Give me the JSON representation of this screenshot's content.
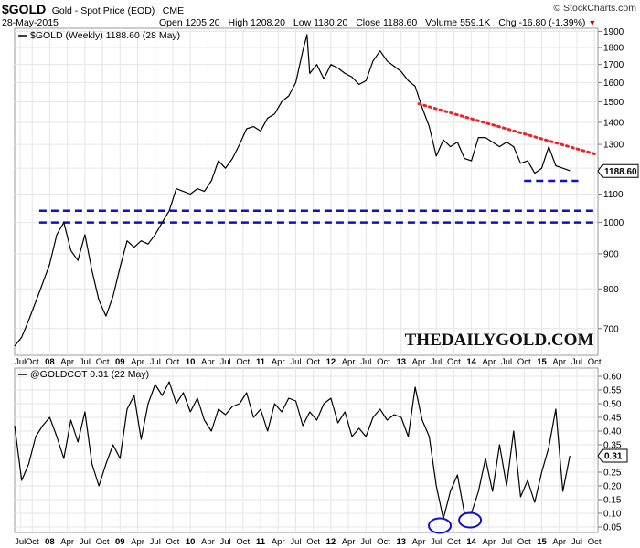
{
  "header": {
    "symbol": "$GOLD",
    "description": "Gold - Spot Price (EOD)",
    "exchange": "CME",
    "date": "28-May-2015",
    "open_label": "Open",
    "open_value": "1205.20",
    "high_label": "High",
    "high_value": "1208.20",
    "low_label": "Low",
    "low_value": "1180.20",
    "close_label": "Close",
    "close_value": "1188.60",
    "volume_label": "Volume",
    "volume_value": "559.1K",
    "chg_label": "Chg",
    "chg_value": "-16.80 (-1.39%)",
    "copyright": "© StockCharts.com",
    "change_color": "#cc0000"
  },
  "watermark": "THEDAILYGOLD.COM",
  "chart_data": [
    {
      "type": "line",
      "name": "price-panel",
      "legend": "$GOLD (Weekly) 1188.60 (28 May)",
      "last_value_label": "1188.60",
      "y_scale": "log",
      "ylim": [
        640,
        1920
      ],
      "yticks": [
        700,
        800,
        900,
        1000,
        1100,
        1200,
        1300,
        1400,
        1500,
        1600,
        1700,
        1800,
        1900
      ],
      "xlim": [
        2007.5,
        2015.8
      ],
      "x_tick_labels": [
        {
          "x": 2007.58,
          "label": "Jul"
        },
        {
          "x": 2007.75,
          "label": "Oct"
        },
        {
          "x": 2008.0,
          "label": "08"
        },
        {
          "x": 2008.25,
          "label": "Apr"
        },
        {
          "x": 2008.5,
          "label": "Jul"
        },
        {
          "x": 2008.75,
          "label": "Oct"
        },
        {
          "x": 2009.0,
          "label": "09"
        },
        {
          "x": 2009.25,
          "label": "Apr"
        },
        {
          "x": 2009.5,
          "label": "Jul"
        },
        {
          "x": 2009.75,
          "label": "Oct"
        },
        {
          "x": 2010.0,
          "label": "10"
        },
        {
          "x": 2010.25,
          "label": "Apr"
        },
        {
          "x": 2010.5,
          "label": "Jul"
        },
        {
          "x": 2010.75,
          "label": "Oct"
        },
        {
          "x": 2011.0,
          "label": "11"
        },
        {
          "x": 2011.25,
          "label": "Apr"
        },
        {
          "x": 2011.5,
          "label": "Jul"
        },
        {
          "x": 2011.75,
          "label": "Oct"
        },
        {
          "x": 2012.0,
          "label": "12"
        },
        {
          "x": 2012.25,
          "label": "Apr"
        },
        {
          "x": 2012.5,
          "label": "Jul"
        },
        {
          "x": 2012.75,
          "label": "Oct"
        },
        {
          "x": 2013.0,
          "label": "13"
        },
        {
          "x": 2013.25,
          "label": "Apr"
        },
        {
          "x": 2013.5,
          "label": "Jul"
        },
        {
          "x": 2013.75,
          "label": "Oct"
        },
        {
          "x": 2014.0,
          "label": "14"
        },
        {
          "x": 2014.25,
          "label": "Apr"
        },
        {
          "x": 2014.5,
          "label": "Jul"
        },
        {
          "x": 2014.75,
          "label": "Oct"
        },
        {
          "x": 2015.0,
          "label": "15"
        },
        {
          "x": 2015.25,
          "label": "Apr"
        },
        {
          "x": 2015.5,
          "label": "Jul"
        },
        {
          "x": 2015.75,
          "label": "Oct"
        }
      ],
      "bold_tick_labels": [
        "08",
        "09",
        "10",
        "11",
        "12",
        "13",
        "14",
        "15"
      ],
      "series": [
        {
          "name": "$GOLD",
          "color": "#000000",
          "x": [
            2007.5,
            2007.6,
            2007.7,
            2007.85,
            2008.0,
            2008.1,
            2008.2,
            2008.3,
            2008.4,
            2008.5,
            2008.6,
            2008.7,
            2008.8,
            2008.9,
            2009.0,
            2009.1,
            2009.2,
            2009.3,
            2009.4,
            2009.5,
            2009.6,
            2009.7,
            2009.8,
            2009.9,
            2010.0,
            2010.1,
            2010.2,
            2010.3,
            2010.4,
            2010.5,
            2010.6,
            2010.7,
            2010.8,
            2010.9,
            2011.0,
            2011.1,
            2011.2,
            2011.3,
            2011.4,
            2011.5,
            2011.6,
            2011.66,
            2011.7,
            2011.8,
            2011.9,
            2012.0,
            2012.1,
            2012.2,
            2012.3,
            2012.4,
            2012.5,
            2012.6,
            2012.7,
            2012.8,
            2012.9,
            2013.0,
            2013.1,
            2013.2,
            2013.3,
            2013.4,
            2013.5,
            2013.6,
            2013.7,
            2013.8,
            2013.9,
            2014.0,
            2014.1,
            2014.2,
            2014.3,
            2014.4,
            2014.5,
            2014.6,
            2014.7,
            2014.8,
            2014.9,
            2015.0,
            2015.1,
            2015.2,
            2015.3,
            2015.4
          ],
          "y": [
            660,
            680,
            720,
            790,
            870,
            960,
            1000,
            910,
            880,
            960,
            850,
            770,
            730,
            780,
            860,
            940,
            920,
            940,
            930,
            960,
            1000,
            1040,
            1120,
            1110,
            1100,
            1120,
            1110,
            1150,
            1230,
            1200,
            1240,
            1300,
            1370,
            1380,
            1360,
            1420,
            1440,
            1500,
            1530,
            1600,
            1780,
            1880,
            1650,
            1700,
            1620,
            1700,
            1680,
            1650,
            1630,
            1590,
            1610,
            1720,
            1780,
            1720,
            1690,
            1660,
            1610,
            1580,
            1470,
            1380,
            1250,
            1320,
            1290,
            1310,
            1240,
            1230,
            1330,
            1330,
            1310,
            1290,
            1310,
            1290,
            1220,
            1230,
            1180,
            1200,
            1290,
            1210,
            1200,
            1190
          ]
        }
      ],
      "annotations": {
        "resistance_line": {
          "color": "#e8262a",
          "x": [
            2013.25,
            2015.8
          ],
          "y": [
            1490,
            1255
          ]
        },
        "support_lines": [
          {
            "color": "#1010c8",
            "x": [
              2007.85,
              2015.8
            ],
            "y": [
              1040,
              1040
            ]
          },
          {
            "color": "#1010c8",
            "x": [
              2007.85,
              2015.8
            ],
            "y": [
              1000,
              1000
            ]
          },
          {
            "color": "#1010c8",
            "x": [
              2014.75,
              2015.52
            ],
            "y": [
              1150,
              1150
            ]
          }
        ]
      }
    },
    {
      "type": "line",
      "name": "cot-panel",
      "legend": "@GOLDCOT 0.31 (22 May)",
      "last_value_label": "0.31",
      "ylim": [
        0.03,
        0.63
      ],
      "yticks": [
        0.05,
        0.1,
        0.15,
        0.2,
        0.25,
        0.3,
        0.35,
        0.4,
        0.45,
        0.5,
        0.55,
        0.6
      ],
      "xlim": [
        2007.5,
        2015.8
      ],
      "series": [
        {
          "name": "@GOLDCOT",
          "color": "#000000",
          "x": [
            2007.5,
            2007.6,
            2007.7,
            2007.8,
            2007.9,
            2008.0,
            2008.1,
            2008.2,
            2008.3,
            2008.4,
            2008.5,
            2008.6,
            2008.7,
            2008.8,
            2008.9,
            2009.0,
            2009.1,
            2009.2,
            2009.3,
            2009.4,
            2009.5,
            2009.6,
            2009.7,
            2009.8,
            2009.9,
            2010.0,
            2010.1,
            2010.2,
            2010.3,
            2010.4,
            2010.5,
            2010.6,
            2010.7,
            2010.8,
            2010.9,
            2011.0,
            2011.1,
            2011.2,
            2011.3,
            2011.4,
            2011.5,
            2011.6,
            2011.7,
            2011.8,
            2011.9,
            2012.0,
            2012.1,
            2012.2,
            2012.3,
            2012.4,
            2012.5,
            2012.6,
            2012.7,
            2012.8,
            2012.9,
            2013.0,
            2013.1,
            2013.2,
            2013.3,
            2013.4,
            2013.5,
            2013.6,
            2013.7,
            2013.8,
            2013.9,
            2014.0,
            2014.1,
            2014.2,
            2014.3,
            2014.4,
            2014.5,
            2014.6,
            2014.7,
            2014.8,
            2014.9,
            2015.0,
            2015.1,
            2015.2,
            2015.3,
            2015.4
          ],
          "y": [
            0.42,
            0.22,
            0.28,
            0.38,
            0.42,
            0.45,
            0.38,
            0.3,
            0.44,
            0.36,
            0.47,
            0.28,
            0.2,
            0.28,
            0.35,
            0.3,
            0.48,
            0.53,
            0.37,
            0.5,
            0.57,
            0.53,
            0.58,
            0.5,
            0.54,
            0.47,
            0.52,
            0.44,
            0.4,
            0.48,
            0.46,
            0.49,
            0.5,
            0.54,
            0.45,
            0.48,
            0.4,
            0.5,
            0.47,
            0.52,
            0.51,
            0.42,
            0.47,
            0.44,
            0.5,
            0.52,
            0.43,
            0.47,
            0.38,
            0.41,
            0.38,
            0.45,
            0.48,
            0.44,
            0.46,
            0.45,
            0.38,
            0.56,
            0.44,
            0.38,
            0.2,
            0.08,
            0.18,
            0.24,
            0.1,
            0.1,
            0.18,
            0.3,
            0.18,
            0.35,
            0.2,
            0.4,
            0.16,
            0.22,
            0.14,
            0.25,
            0.34,
            0.48,
            0.18,
            0.31
          ]
        }
      ],
      "annotations": {
        "circles": [
          {
            "color": "#1010c8",
            "x": 2013.55,
            "y": 0.055
          },
          {
            "color": "#1010c8",
            "x": 2013.98,
            "y": 0.075
          }
        ]
      }
    }
  ]
}
